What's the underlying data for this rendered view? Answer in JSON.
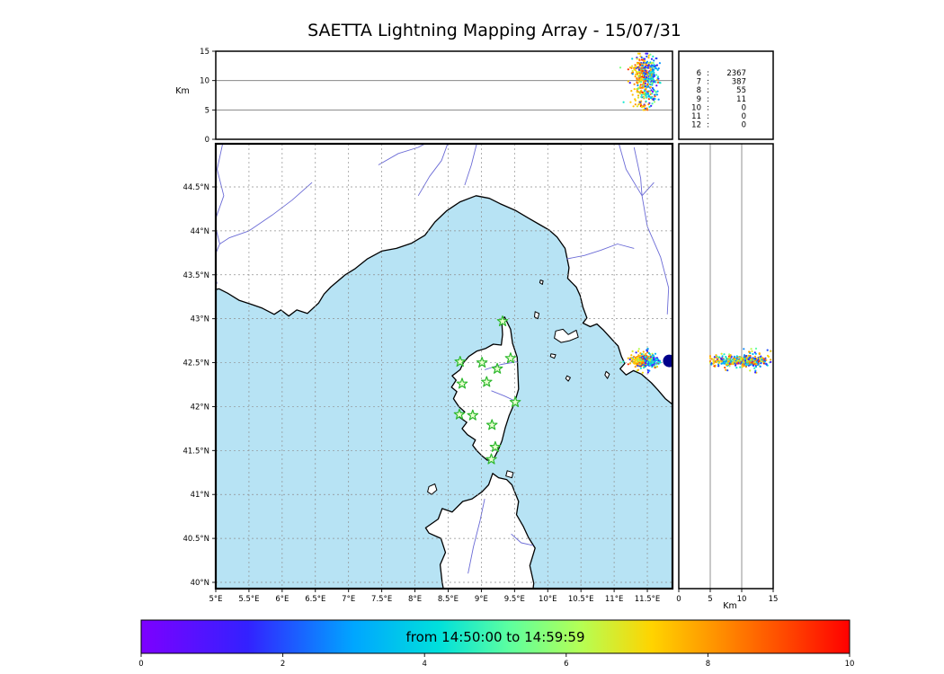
{
  "title": "SAETTA Lightning Mapping Array - 15/07/31",
  "colorbar": {
    "label": "from 14:50:00 to 14:59:59",
    "ticks": [
      "0",
      "2",
      "4",
      "6",
      "8",
      "10"
    ],
    "stops": [
      [
        0,
        "#7d00ff"
      ],
      [
        0.15,
        "#3321ff"
      ],
      [
        0.3,
        "#00a6ff"
      ],
      [
        0.42,
        "#00e0dc"
      ],
      [
        0.52,
        "#5dff9f"
      ],
      [
        0.62,
        "#b4ff55"
      ],
      [
        0.72,
        "#ffd400"
      ],
      [
        0.82,
        "#ff8c00"
      ],
      [
        0.92,
        "#ff4000"
      ],
      [
        1,
        "#ff0000"
      ]
    ]
  },
  "stats": {
    "rows": [
      {
        "label": "6",
        "value": "2367",
        "color": "#000000"
      },
      {
        "label": "7",
        "value": "387",
        "color": "#dd0000"
      },
      {
        "label": "8",
        "value": "55",
        "color": "#000000"
      },
      {
        "label": "9",
        "value": "11",
        "color": "#000000"
      },
      {
        "label": "10",
        "value": "0",
        "color": "#000000"
      },
      {
        "label": "11",
        "value": "0",
        "color": "#000000"
      },
      {
        "label": "12",
        "value": "0",
        "color": "#000000"
      }
    ]
  },
  "axes": {
    "alt_label_left": "Km",
    "alt_label_bottom": "Km",
    "alt_ticks": [
      "0",
      "5",
      "10",
      "15"
    ],
    "lon_ticks": [
      "5°E",
      "5.5°E",
      "6°E",
      "6.5°E",
      "7°E",
      "7.5°E",
      "8°E",
      "8.5°E",
      "9°E",
      "9.5°E",
      "10°E",
      "10.5°E",
      "11°E",
      "11.5°E"
    ],
    "lat_ticks": [
      "40°N",
      "40.5°N",
      "41°N",
      "41.5°N",
      "42°N",
      "42.5°N",
      "43°N",
      "43.5°N",
      "44°N",
      "44.5°N"
    ]
  },
  "map": {
    "sea_color": "#b7e3f4",
    "land_color": "#ffffff",
    "coast_color": "#000000",
    "river_color": "#6b6bd6",
    "grid_color": "#8f8f8f",
    "station_stroke": "#2db82d",
    "station_fill": "#e9ffcf",
    "big_dot": {
      "lon": 11.83,
      "lat": 42.52,
      "color": "#00008b",
      "radius": 7
    },
    "stations": [
      [
        9.32,
        42.97
      ],
      [
        8.68,
        42.51
      ],
      [
        9.01,
        42.5
      ],
      [
        9.44,
        42.55
      ],
      [
        9.24,
        42.43
      ],
      [
        8.71,
        42.26
      ],
      [
        9.08,
        42.28
      ],
      [
        9.51,
        42.05
      ],
      [
        8.67,
        41.91
      ],
      [
        8.87,
        41.9
      ],
      [
        9.16,
        41.79
      ],
      [
        9.21,
        41.54
      ],
      [
        9.15,
        41.4
      ]
    ],
    "geometry": {
      "mainland": [
        [
          4.8,
          43.3
        ],
        [
          5.05,
          43.34
        ],
        [
          5.18,
          43.29
        ],
        [
          5.35,
          43.21
        ],
        [
          5.55,
          43.16
        ],
        [
          5.7,
          43.12
        ],
        [
          5.88,
          43.05
        ],
        [
          5.98,
          43.1
        ],
        [
          6.1,
          43.03
        ],
        [
          6.22,
          43.1
        ],
        [
          6.38,
          43.06
        ],
        [
          6.55,
          43.18
        ],
        [
          6.63,
          43.28
        ],
        [
          6.73,
          43.36
        ],
        [
          6.95,
          43.5
        ],
        [
          7.1,
          43.57
        ],
        [
          7.28,
          43.68
        ],
        [
          7.5,
          43.77
        ],
        [
          7.72,
          43.8
        ],
        [
          7.95,
          43.86
        ],
        [
          8.15,
          43.95
        ],
        [
          8.3,
          44.1
        ],
        [
          8.48,
          44.23
        ],
        [
          8.68,
          44.33
        ],
        [
          8.92,
          44.4
        ],
        [
          9.12,
          44.37
        ],
        [
          9.28,
          44.31
        ],
        [
          9.52,
          44.23
        ],
        [
          9.72,
          44.14
        ],
        [
          9.88,
          44.07
        ],
        [
          10.02,
          44.01
        ],
        [
          10.14,
          43.93
        ],
        [
          10.26,
          43.8
        ],
        [
          10.32,
          43.58
        ],
        [
          10.3,
          43.46
        ],
        [
          10.43,
          43.36
        ],
        [
          10.49,
          43.26
        ],
        [
          10.53,
          43.13
        ],
        [
          10.59,
          43.01
        ],
        [
          10.53,
          42.95
        ],
        [
          10.64,
          42.91
        ],
        [
          10.74,
          42.94
        ],
        [
          10.84,
          42.87
        ],
        [
          10.96,
          42.77
        ],
        [
          11.06,
          42.69
        ],
        [
          11.11,
          42.57
        ],
        [
          11.16,
          42.49
        ],
        [
          11.09,
          42.43
        ],
        [
          11.18,
          42.36
        ],
        [
          11.29,
          42.41
        ],
        [
          11.41,
          42.37
        ],
        [
          11.56,
          42.27
        ],
        [
          11.66,
          42.19
        ],
        [
          11.77,
          42.09
        ],
        [
          11.92,
          42.0
        ],
        [
          12.15,
          41.86
        ],
        [
          12.15,
          45.3
        ],
        [
          4.8,
          45.3
        ]
      ],
      "corsica": [
        [
          9.35,
          43.02
        ],
        [
          9.44,
          42.88
        ],
        [
          9.47,
          42.72
        ],
        [
          9.54,
          42.56
        ],
        [
          9.55,
          42.4
        ],
        [
          9.56,
          42.2
        ],
        [
          9.5,
          42.04
        ],
        [
          9.42,
          41.9
        ],
        [
          9.36,
          41.76
        ],
        [
          9.31,
          41.61
        ],
        [
          9.25,
          41.5
        ],
        [
          9.19,
          41.41
        ],
        [
          9.09,
          41.39
        ],
        [
          9.01,
          41.44
        ],
        [
          8.93,
          41.5
        ],
        [
          8.87,
          41.56
        ],
        [
          8.91,
          41.62
        ],
        [
          8.79,
          41.68
        ],
        [
          8.71,
          41.75
        ],
        [
          8.78,
          41.82
        ],
        [
          8.65,
          41.89
        ],
        [
          8.75,
          41.94
        ],
        [
          8.66,
          42.0
        ],
        [
          8.58,
          42.09
        ],
        [
          8.63,
          42.17
        ],
        [
          8.55,
          42.22
        ],
        [
          8.62,
          42.3
        ],
        [
          8.56,
          42.35
        ],
        [
          8.68,
          42.42
        ],
        [
          8.73,
          42.5
        ],
        [
          8.81,
          42.57
        ],
        [
          8.93,
          42.63
        ],
        [
          9.06,
          42.66
        ],
        [
          9.18,
          42.71
        ],
        [
          9.3,
          42.7
        ],
        [
          9.32,
          42.82
        ],
        [
          9.31,
          42.94
        ]
      ],
      "sardinia": [
        [
          8.46,
          39.8
        ],
        [
          8.41,
          40.0
        ],
        [
          8.38,
          40.2
        ],
        [
          8.46,
          40.34
        ],
        [
          8.39,
          40.5
        ],
        [
          8.21,
          40.56
        ],
        [
          8.16,
          40.62
        ],
        [
          8.35,
          40.72
        ],
        [
          8.41,
          40.84
        ],
        [
          8.56,
          40.8
        ],
        [
          8.72,
          40.92
        ],
        [
          8.86,
          40.95
        ],
        [
          9.01,
          41.03
        ],
        [
          9.11,
          41.11
        ],
        [
          9.17,
          41.24
        ],
        [
          9.26,
          41.19
        ],
        [
          9.38,
          41.17
        ],
        [
          9.46,
          41.11
        ],
        [
          9.56,
          40.92
        ],
        [
          9.53,
          40.77
        ],
        [
          9.63,
          40.64
        ],
        [
          9.71,
          40.51
        ],
        [
          9.81,
          40.39
        ],
        [
          9.73,
          40.19
        ],
        [
          9.79,
          39.99
        ],
        [
          9.76,
          39.8
        ]
      ],
      "islands": [
        [
          [
            10.1,
            42.78
          ],
          [
            10.12,
            42.86
          ],
          [
            10.23,
            42.88
          ],
          [
            10.31,
            42.82
          ],
          [
            10.43,
            42.87
          ],
          [
            10.46,
            42.79
          ],
          [
            10.33,
            42.75
          ],
          [
            10.2,
            42.73
          ]
        ],
        [
          [
            9.81,
            43.08
          ],
          [
            9.87,
            43.06
          ],
          [
            9.85,
            43.0
          ],
          [
            9.8,
            43.02
          ]
        ],
        [
          [
            9.89,
            43.44
          ],
          [
            9.93,
            43.43
          ],
          [
            9.92,
            43.39
          ],
          [
            9.88,
            43.41
          ]
        ],
        [
          [
            10.05,
            42.6
          ],
          [
            10.12,
            42.59
          ],
          [
            10.1,
            42.55
          ],
          [
            10.04,
            42.57
          ]
        ],
        [
          [
            10.29,
            42.35
          ],
          [
            10.34,
            42.33
          ],
          [
            10.31,
            42.29
          ],
          [
            10.27,
            42.32
          ]
        ],
        [
          [
            10.88,
            42.4
          ],
          [
            10.93,
            42.37
          ],
          [
            10.9,
            42.32
          ],
          [
            10.86,
            42.36
          ]
        ],
        [
          [
            8.21,
            41.09
          ],
          [
            8.3,
            41.12
          ],
          [
            8.33,
            41.05
          ],
          [
            8.25,
            41.0
          ],
          [
            8.19,
            41.03
          ]
        ],
        [
          [
            9.39,
            41.27
          ],
          [
            9.48,
            41.25
          ],
          [
            9.46,
            41.19
          ],
          [
            9.37,
            41.21
          ]
        ]
      ],
      "rivers": [
        [
          [
            5.12,
            45.05
          ],
          [
            5.02,
            44.7
          ],
          [
            5.12,
            44.4
          ],
          [
            4.98,
            44.1
          ],
          [
            5.06,
            43.85
          ],
          [
            4.92,
            43.6
          ],
          [
            5.02,
            43.4
          ]
        ],
        [
          [
            6.45,
            44.55
          ],
          [
            6.15,
            44.35
          ],
          [
            5.85,
            44.18
          ],
          [
            5.5,
            44.0
          ],
          [
            5.2,
            43.92
          ],
          [
            5.06,
            43.85
          ]
        ],
        [
          [
            7.45,
            44.75
          ],
          [
            7.75,
            44.88
          ],
          [
            8.05,
            44.95
          ],
          [
            8.3,
            45.05
          ]
        ],
        [
          [
            8.05,
            44.4
          ],
          [
            8.22,
            44.62
          ],
          [
            8.4,
            44.8
          ],
          [
            8.52,
            45.05
          ]
        ],
        [
          [
            8.75,
            44.52
          ],
          [
            8.85,
            44.75
          ],
          [
            8.95,
            45.05
          ]
        ],
        [
          [
            10.28,
            43.68
          ],
          [
            10.55,
            43.72
          ],
          [
            10.8,
            43.78
          ],
          [
            11.05,
            43.85
          ],
          [
            11.3,
            43.8
          ]
        ],
        [
          [
            11.05,
            45.05
          ],
          [
            11.18,
            44.7
          ],
          [
            11.42,
            44.4
          ],
          [
            11.5,
            44.05
          ],
          [
            11.7,
            43.7
          ],
          [
            11.82,
            43.35
          ],
          [
            11.8,
            43.05
          ]
        ],
        [
          [
            11.6,
            44.55
          ],
          [
            11.42,
            44.4
          ]
        ],
        [
          [
            11.3,
            44.95
          ],
          [
            11.4,
            44.6
          ],
          [
            11.42,
            44.4
          ]
        ],
        [
          [
            9.05,
            42.42
          ],
          [
            9.3,
            42.48
          ],
          [
            9.54,
            42.51
          ]
        ],
        [
          [
            9.15,
            42.18
          ],
          [
            9.35,
            42.12
          ],
          [
            9.55,
            42.05
          ]
        ],
        [
          [
            8.8,
            40.1
          ],
          [
            8.88,
            40.4
          ],
          [
            8.98,
            40.7
          ],
          [
            9.05,
            40.95
          ]
        ],
        [
          [
            9.45,
            40.55
          ],
          [
            9.6,
            40.45
          ],
          [
            9.78,
            40.42
          ]
        ]
      ]
    }
  },
  "chart_data": {
    "type": "scatter",
    "title": "SAETTA Lightning Mapping Array - 15/07/31",
    "colormap": "rainbow",
    "color_meaning": "elapsed time in minutes (0-10) within window from 14:50:00 to 14:59:59",
    "time_axis": {
      "range": [
        0,
        10
      ],
      "ticks": [
        0,
        2,
        4,
        6,
        8,
        10
      ]
    },
    "altitude_axis": {
      "label": "Km",
      "range": [
        0,
        15
      ],
      "ticks": [
        0,
        5,
        10,
        15
      ],
      "gridlines": [
        5,
        10
      ]
    },
    "map_axis": {
      "lon_range": [
        5,
        11.88
      ],
      "lat_range": [
        39.93,
        44.99
      ],
      "grid_step_deg": 0.5
    },
    "station_source_counts": [
      [
        "6",
        2367
      ],
      [
        "7",
        387
      ],
      [
        "8",
        55
      ],
      [
        "9",
        11
      ],
      [
        "10",
        0
      ],
      [
        "11",
        0
      ],
      [
        "12",
        0
      ]
    ],
    "highlighted_station": "7",
    "lightning_cluster": {
      "lon_center": 11.47,
      "lon_spread_deg": 0.09,
      "lat_center": 42.52,
      "lat_spread_deg": 0.035,
      "alt_km_range": [
        5,
        14.6
      ],
      "alt_km_mode": 11.3,
      "rendered_points": 480,
      "time_color_mixture": [
        {
          "mean_min": 2.0,
          "sd": 0.8,
          "weight": 0.28
        },
        {
          "mean_min": 4.3,
          "sd": 0.7,
          "weight": 0.22
        },
        {
          "mean_min": 7.6,
          "sd": 0.9,
          "weight": 0.5
        }
      ]
    }
  }
}
